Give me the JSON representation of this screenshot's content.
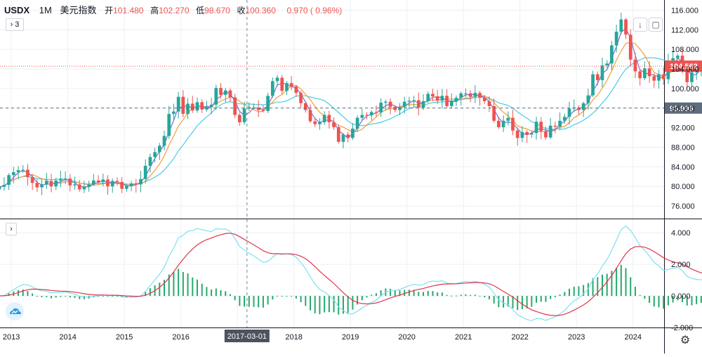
{
  "header": {
    "symbol": "USDX",
    "timeframe": "1M",
    "name": "美元指数",
    "open_label": "开",
    "open_value": "101.480",
    "high_label": "高",
    "high_value": "102.270",
    "low_label": "低",
    "low_value": "98.670",
    "close_label": "收",
    "close_value": "100.360",
    "change": "0.970 ( 0.96%)",
    "indicator_toggle": "› 3",
    "lower_toggle": "›"
  },
  "chart_data": [
    {
      "type": "candlestick",
      "title": "USDX 1M 美元指数",
      "x_labels": [
        "2013",
        "2014",
        "2015",
        "2016",
        "2017",
        "2018",
        "2019",
        "2020",
        "2021",
        "2022",
        "2023",
        "2024"
      ],
      "x_range": [
        2012.8,
        2024.55
      ],
      "y_ticks": [
        "76.000",
        "80.000",
        "84.000",
        "88.000",
        "92.000",
        "96.000",
        "100.000",
        "104.000",
        "108.000",
        "112.000",
        "116.000"
      ],
      "ylim": [
        74,
        117.5
      ],
      "price_tags": [
        {
          "label": "104.562",
          "value": 104.562,
          "color": "#ef5350"
        },
        {
          "label": "95.996",
          "value": 95.996,
          "color": "#5d6b7e"
        }
      ],
      "crosshair_label": "2017-03-01",
      "crosshair_x": 2017.17,
      "candles_close": [
        79.9,
        80.3,
        82.3,
        82.9,
        83.3,
        83.4,
        81.9,
        80.7,
        79.8,
        80.4,
        81.1,
        80.0,
        81.2,
        81.5,
        81.6,
        80.2,
        80.4,
        79.4,
        79.9,
        80.4,
        81.2,
        80.9,
        81.4,
        80.0,
        81.1,
        80.9,
        79.5,
        80.1,
        80.6,
        80.4,
        81.5,
        84.2,
        86.0,
        87.0,
        88.3,
        90.3,
        94.8,
        95.3,
        98.3,
        94.8,
        96.9,
        95.5,
        97.2,
        95.7,
        96.2,
        96.7,
        100.1,
        98.7,
        99.6,
        98.2,
        94.6,
        93.1,
        95.9,
        96.1,
        96.1,
        95.6,
        95.4,
        98.5,
        101.5,
        102.2,
        99.5,
        101.1,
        100.4,
        99.1,
        97.0,
        95.6,
        93.3,
        92.7,
        93.1,
        94.6,
        93.1,
        92.1,
        89.1,
        90.6,
        89.9,
        91.8,
        94.0,
        94.6,
        94.5,
        95.2,
        95.1,
        97.1,
        97.3,
        96.2,
        95.6,
        96.2,
        97.3,
        97.5,
        97.6,
        96.1,
        97.4,
        98.9,
        98.4,
        97.5,
        98.5,
        96.4,
        97.4,
        98.1,
        99.0,
        99.0,
        98.3,
        99.1,
        98.1,
        97.4,
        96.4,
        93.4,
        92.1,
        93.4,
        94.0,
        91.4,
        89.9,
        91.1,
        90.6,
        90.9,
        93.2,
        91.3,
        90.0,
        92.4,
        92.2,
        93.4,
        94.2,
        95.9,
        96.1,
        95.6,
        97.0,
        98.6,
        102.9,
        101.7,
        104.7,
        105.1,
        108.8,
        111.6,
        114.1,
        111.0,
        105.9,
        103.5,
        102.1,
        104.1,
        102.5,
        101.6,
        102.9,
        101.9,
        105.7,
        106.2,
        106.7,
        103.5,
        101.3,
        103.3,
        104.1,
        104.5,
        106.1,
        105.0,
        104.0,
        104.6
      ],
      "ma_fast": "blue",
      "ma_mid": "orange",
      "ma_slow": "cyan"
    },
    {
      "type": "macd",
      "y_ticks": [
        "-2.000",
        "0.000",
        "2.000",
        "4.000"
      ],
      "ylim": [
        -2.0,
        4.5
      ],
      "colors": {
        "macd": "#7ee0f0",
        "signal": "#e0344c",
        "hist": "#26a96c"
      }
    }
  ],
  "colors": {
    "up": "#26a69a",
    "down": "#ef5350",
    "ma_blue": "#7b6fd6",
    "ma_orange": "#f59c3a",
    "ma_cyan": "#4ccbe0",
    "grid": "#eceff3"
  }
}
